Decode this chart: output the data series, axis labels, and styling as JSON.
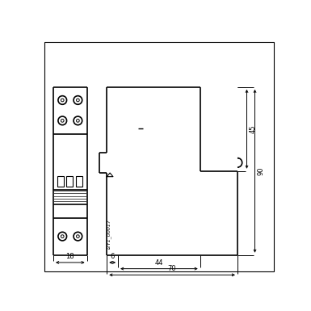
{
  "bg_color": "#ffffff",
  "line_color": "#000000",
  "fig_width": 3.85,
  "fig_height": 3.85,
  "dpi": 100,
  "label_I2Y1": "I2Y1_00017",
  "dim_18": "18",
  "dim_6": "6",
  "dim_44": "44",
  "dim_70": "70",
  "dim_45": "45",
  "dim_90": "90",
  "border_lw": 0.8,
  "body_lw": 1.2,
  "dim_lw": 0.7,
  "font_size_dim": 6.0,
  "font_size_label": 4.5
}
